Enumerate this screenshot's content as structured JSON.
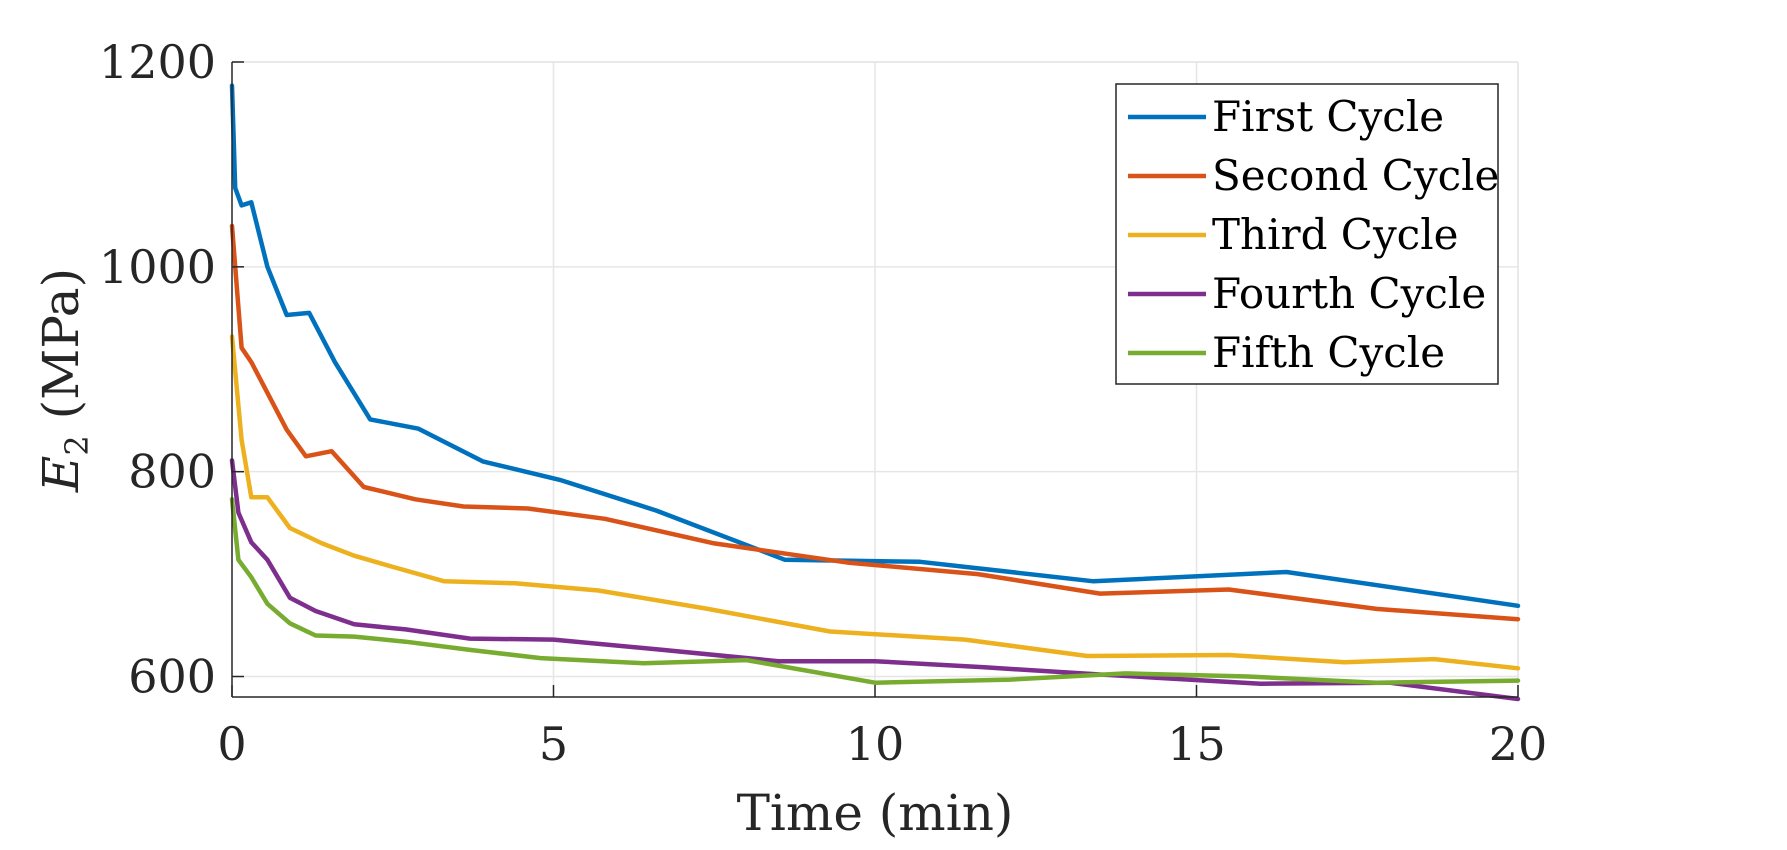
{
  "chart_data": {
    "type": "line",
    "title": "",
    "xlabel": "Time (min)",
    "ylabel_main": "E",
    "ylabel_sub": "2",
    "ylabel_units": " (MPa)",
    "xlim": [
      0,
      20
    ],
    "ylim": [
      580,
      1200
    ],
    "xticks": [
      0,
      5,
      10,
      15,
      20
    ],
    "yticks": [
      600,
      800,
      1000,
      1200
    ],
    "grid": true,
    "legend_position": "top-right",
    "series": [
      {
        "name": "First Cycle",
        "color": "#0072BD",
        "x": [
          0,
          0.05,
          0.15,
          0.3,
          0.55,
          0.85,
          1.2,
          1.6,
          2.15,
          2.9,
          3.9,
          5.1,
          6.6,
          8.6,
          10.7,
          13.4,
          16.4,
          20
        ],
        "y": [
          1177,
          1077,
          1060,
          1063,
          1000,
          953,
          955,
          907,
          851,
          842,
          810,
          792,
          762,
          714,
          712,
          693,
          702,
          669
        ]
      },
      {
        "name": "Second Cycle",
        "color": "#D95319",
        "x": [
          0,
          0.15,
          0.3,
          0.55,
          0.85,
          1.15,
          1.55,
          2.05,
          2.85,
          3.6,
          4.6,
          5.8,
          7.5,
          9.6,
          11.6,
          13.5,
          15.5,
          17.8,
          20
        ],
        "y": [
          1040,
          921,
          907,
          877,
          841,
          815,
          820,
          785,
          773,
          766,
          764,
          754,
          730,
          711,
          700,
          681,
          685,
          666,
          656
        ]
      },
      {
        "name": "Third Cycle",
        "color": "#EDB120",
        "x": [
          0,
          0.15,
          0.3,
          0.55,
          0.9,
          1.4,
          1.9,
          2.5,
          3.3,
          4.4,
          5.7,
          7.4,
          9.3,
          11.4,
          13.3,
          15.5,
          17.3,
          18.7,
          20
        ],
        "y": [
          932,
          831,
          775,
          775,
          745,
          730,
          718,
          707,
          693,
          691,
          684,
          666,
          644,
          636,
          620,
          621,
          614,
          617,
          608
        ]
      },
      {
        "name": "Fourth Cycle",
        "color": "#7E2F8E",
        "x": [
          0,
          0.1,
          0.3,
          0.55,
          0.9,
          1.3,
          1.9,
          2.7,
          3.7,
          5,
          6.7,
          8.5,
          10,
          11.7,
          13.5,
          16,
          18,
          20
        ],
        "y": [
          811,
          760,
          731,
          714,
          677,
          664,
          651,
          646,
          637,
          636,
          626,
          615,
          615,
          609,
          602,
          593,
          594,
          578
        ]
      },
      {
        "name": "Fifth Cycle",
        "color": "#77AC30",
        "x": [
          0,
          0.1,
          0.3,
          0.55,
          0.9,
          1.3,
          1.9,
          2.7,
          3.7,
          4.8,
          6.4,
          8,
          10,
          12.1,
          13.9,
          15.8,
          17.8,
          20
        ],
        "y": [
          773,
          714,
          697,
          671,
          652,
          640,
          639,
          634,
          626,
          618,
          613,
          616,
          594,
          597,
          603,
          600,
          594,
          596
        ]
      }
    ]
  }
}
